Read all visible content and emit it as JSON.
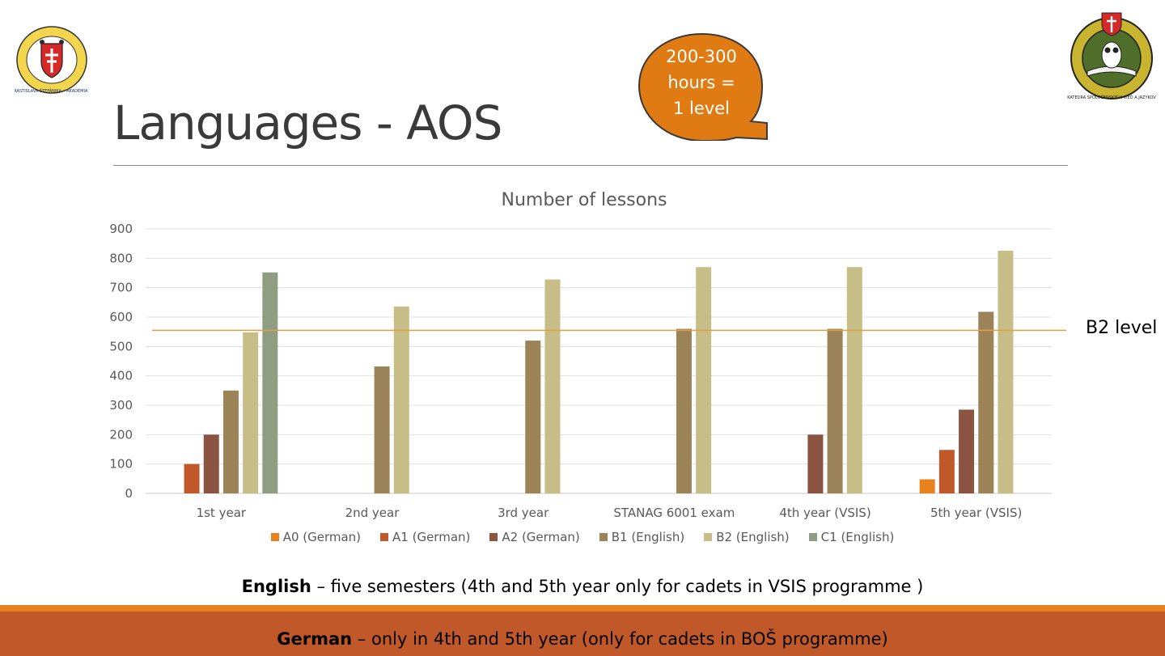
{
  "slide": {
    "title": "Languages - AOS",
    "callout_lines": [
      "200-300",
      "hours =",
      "1 level"
    ],
    "reference_label": "B2 level",
    "english_note": {
      "bold": "English",
      "rest": " – five semesters (4th and 5th year only for cadets in VSIS programme )"
    },
    "german_note": {
      "bold": "German",
      "rest": " – only in 4th and 5th year (only for cadets in BOŠ programme)"
    },
    "logo_left_icon": "academy-crest-logo",
    "logo_right_icon": "department-owl-crest-logo",
    "logo_left_text": "GENERÁLA MILANA RASTISLAVA ŠTEFÁNIKA • AKADÉMIA OZBROJENÝCH SÍL •",
    "logo_right_text": "KATEDRA SPOLOČENSKÝCH VIED A JAZYKOV",
    "colors": {
      "accent_orange": "#E8821E",
      "band_rust": "#C0582A",
      "callout": "#E07B13"
    }
  },
  "chart_data": {
    "type": "bar",
    "title": "Number of lessons",
    "xlabel": "",
    "ylabel": "",
    "ylim": [
      0,
      900
    ],
    "yticks": [
      0,
      100,
      200,
      300,
      400,
      500,
      600,
      700,
      800,
      900
    ],
    "grid": true,
    "legend_position": "bottom",
    "categories": [
      "1st year",
      "2nd year",
      "3rd year",
      "STANAG 6001 exam",
      "4th year (VSIS)",
      "5th year (VSIS)"
    ],
    "series": [
      {
        "name": "A0 (German)",
        "color": "#E8821E",
        "values": [
          0,
          0,
          0,
          0,
          0,
          48
        ]
      },
      {
        "name": "A1 (German)",
        "color": "#C0582A",
        "values": [
          100,
          0,
          0,
          0,
          0,
          148
        ]
      },
      {
        "name": "A2 (German)",
        "color": "#8B5440",
        "values": [
          200,
          0,
          0,
          0,
          200,
          285
        ]
      },
      {
        "name": "B1 (English)",
        "color": "#9C8358",
        "values": [
          350,
          432,
          520,
          560,
          560,
          618
        ]
      },
      {
        "name": "B2 (English)",
        "color": "#C6BE86",
        "values": [
          548,
          636,
          728,
          770,
          770,
          826
        ]
      },
      {
        "name": "C1 (English)",
        "color": "#8F9E83",
        "values": [
          752,
          0,
          0,
          0,
          0,
          0
        ]
      }
    ],
    "reference_line": {
      "value": 555,
      "label": "B2 level",
      "color": "#E0A040"
    }
  }
}
